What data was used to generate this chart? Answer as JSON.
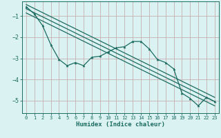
{
  "xlabel": "Humidex (Indice chaleur)",
  "background_color": "#daf2f2",
  "grid_color": "#c8aeb0",
  "line_color": "#1a6b60",
  "xlim": [
    -0.5,
    23.5
  ],
  "ylim": [
    -5.6,
    -0.3
  ],
  "yticks": [
    -5,
    -4,
    -3,
    -2,
    -1
  ],
  "xticks": [
    0,
    1,
    2,
    3,
    4,
    5,
    6,
    7,
    8,
    9,
    10,
    11,
    12,
    13,
    14,
    15,
    16,
    17,
    18,
    19,
    20,
    21,
    22,
    23
  ],
  "line1_x": [
    0,
    1,
    2,
    3,
    4,
    5,
    6,
    7,
    8,
    9,
    10,
    11,
    12,
    13,
    14,
    15,
    16,
    17,
    18,
    19,
    20,
    21,
    22,
    23
  ],
  "line1_y": [
    -0.55,
    -0.9,
    -1.45,
    -2.35,
    -3.05,
    -3.35,
    -3.2,
    -3.35,
    -2.95,
    -2.9,
    -2.7,
    -2.5,
    -2.45,
    -2.2,
    -2.2,
    -2.55,
    -3.05,
    -3.2,
    -3.5,
    -4.65,
    -4.9,
    -5.25,
    -4.85,
    -5.05
  ],
  "line2_x": [
    0,
    23
  ],
  "line2_y": [
    -0.65,
    -5.05
  ],
  "line3_x": [
    0,
    23
  ],
  "line3_y": [
    -0.45,
    -4.85
  ],
  "line4_x": [
    0,
    23
  ],
  "line4_y": [
    -0.85,
    -5.25
  ]
}
